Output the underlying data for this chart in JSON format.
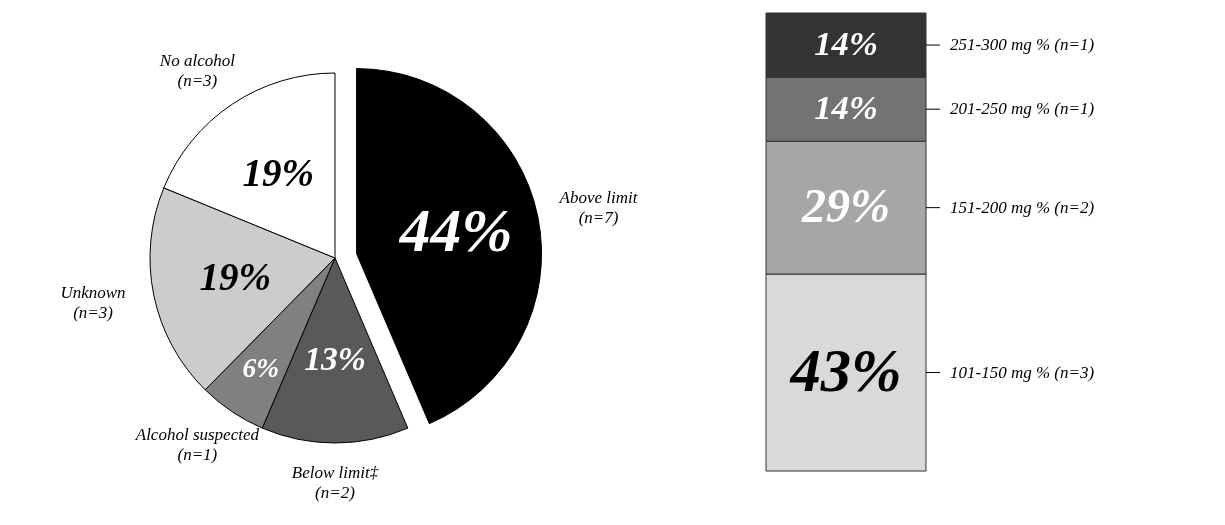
{
  "chart_data": [
    {
      "type": "pie",
      "categories": [
        "Above limit (n=7)",
        "Below limit‡ (n=2)",
        "Alcohol suspected (n=1)",
        "Unknown (n=3)",
        "No alcohol (n=3)"
      ],
      "values": [
        44,
        13,
        6,
        19,
        19
      ],
      "colors": [
        "#000000",
        "#595959",
        "#808080",
        "#cccccc",
        "#ffffff"
      ],
      "value_labels": [
        "44%",
        "13%",
        "6%",
        "19%",
        "19%"
      ]
    },
    {
      "type": "bar",
      "stacked": true,
      "categories": [
        null
      ],
      "series": [
        {
          "name": "101-150 mg % (n=3)",
          "color": "#d9d9d9",
          "values": [
            43
          ],
          "value_labels": [
            "43%"
          ]
        },
        {
          "name": "151-200 mg % (n=2)",
          "color": "#a6a6a6",
          "values": [
            29
          ],
          "value_labels": [
            "29%"
          ]
        },
        {
          "name": "201-250 mg % (n=1)",
          "color": "#737373",
          "values": [
            14
          ],
          "value_labels": [
            "14%"
          ]
        },
        {
          "name": "251-300 mg % (n=1)",
          "color": "#333333",
          "values": [
            14
          ],
          "value_labels": [
            "14%"
          ]
        }
      ]
    }
  ]
}
